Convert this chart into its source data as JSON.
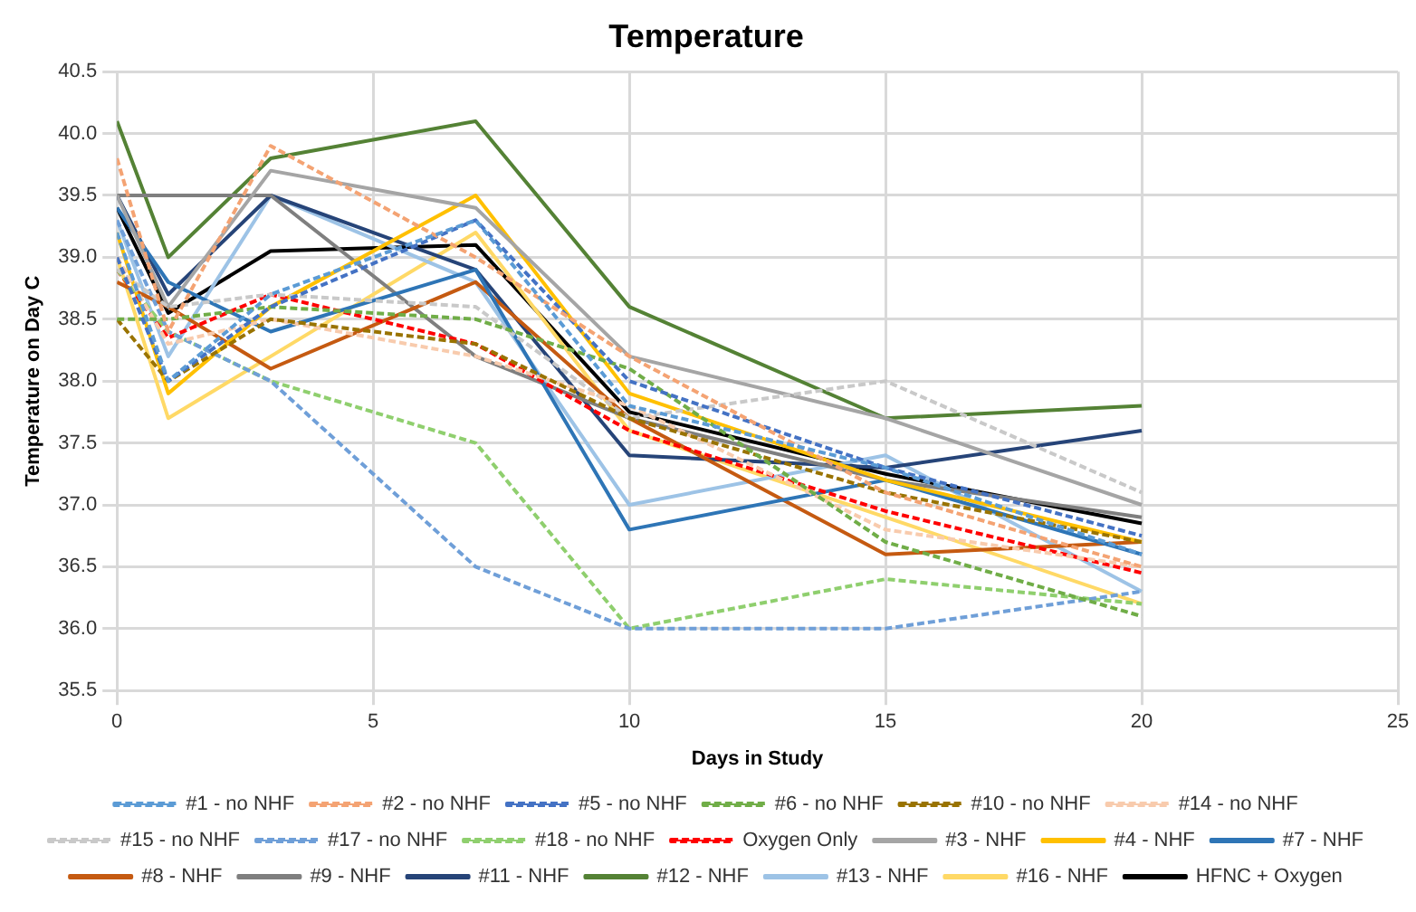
{
  "chart_data": {
    "type": "line",
    "title": "Temperature",
    "xlabel": "Days in Study",
    "ylabel": "Temperature on Day C",
    "x": [
      0,
      1,
      3,
      7,
      10,
      15,
      20
    ],
    "xlim": [
      0,
      25
    ],
    "xticks": [
      0,
      5,
      10,
      15,
      20,
      25
    ],
    "ylim": [
      35.5,
      40.5
    ],
    "yticks": [
      {
        "value": 35.5,
        "label": "35.5"
      },
      {
        "value": 36,
        "label": "36.0"
      },
      {
        "value": 36.5,
        "label": "36.5"
      },
      {
        "value": 37,
        "label": "37.0"
      },
      {
        "value": 37.5,
        "label": "37.5"
      },
      {
        "value": 38,
        "label": "38.0"
      },
      {
        "value": 38.5,
        "label": "38.5"
      },
      {
        "value": 39,
        "label": "39.0"
      },
      {
        "value": 39.5,
        "label": "39.5"
      },
      {
        "value": 40,
        "label": "40.0"
      },
      {
        "value": 40.5,
        "label": "40.5"
      }
    ],
    "grid": true,
    "legend": "bottom",
    "marker": "none",
    "series": [
      {
        "name": "#1 - no NHF",
        "color": "#5b9bd5",
        "line_style": "dashed",
        "values": [
          39.2,
          38.0,
          38.7,
          39.3,
          37.8,
          37.3,
          36.6
        ]
      },
      {
        "name": "#2 - no NHF",
        "color": "#f4a373",
        "line_style": "dashed",
        "values": [
          39.8,
          38.4,
          39.9,
          39.0,
          38.2,
          37.1,
          36.5
        ]
      },
      {
        "name": "#3 - NHF",
        "color": "#a5a5a5",
        "line_style": "solid",
        "values": [
          39.5,
          38.6,
          39.7,
          39.4,
          38.2,
          37.7,
          37.0
        ]
      },
      {
        "name": "#4 - NHF",
        "color": "#ffc000",
        "line_style": "solid",
        "values": [
          39.2,
          37.9,
          38.6,
          39.5,
          37.9,
          37.2,
          36.7
        ]
      },
      {
        "name": "#5 - no NHF",
        "color": "#4472c4",
        "line_style": "dashed",
        "values": [
          39.0,
          38.0,
          38.6,
          39.3,
          38.0,
          37.3,
          36.75
        ]
      },
      {
        "name": "#6 - no NHF",
        "color": "#70ad47",
        "line_style": "dashed",
        "values": [
          38.5,
          38.5,
          38.6,
          38.5,
          38.1,
          36.7,
          36.1
        ]
      },
      {
        "name": "#7 - NHF",
        "color": "#2e75b6",
        "line_style": "solid",
        "values": [
          39.4,
          38.8,
          38.4,
          38.9,
          36.8,
          37.2,
          36.6
        ]
      },
      {
        "name": "#8 - NHF",
        "color": "#c55a11",
        "line_style": "solid",
        "values": [
          38.8,
          38.6,
          38.1,
          38.8,
          37.7,
          36.6,
          36.7
        ]
      },
      {
        "name": "#9 - NHF",
        "color": "#7f7f7f",
        "line_style": "solid",
        "values": [
          39.5,
          39.5,
          39.5,
          38.2,
          37.7,
          37.2,
          36.9
        ]
      },
      {
        "name": "#10 - no NHF",
        "color": "#997300",
        "line_style": "dashed",
        "values": [
          38.5,
          38.0,
          38.5,
          38.3,
          37.7,
          37.1,
          36.7
        ]
      },
      {
        "name": "#11 - NHF",
        "color": "#264478",
        "line_style": "solid",
        "values": [
          39.5,
          38.7,
          39.5,
          38.9,
          37.4,
          37.3,
          37.6
        ]
      },
      {
        "name": "#12 - NHF",
        "color": "#548235",
        "line_style": "solid",
        "values": [
          40.1,
          39.0,
          39.8,
          40.1,
          38.6,
          37.7,
          37.8
        ]
      },
      {
        "name": "#13 - NHF",
        "color": "#9dc3e6",
        "line_style": "solid",
        "values": [
          39.3,
          38.2,
          39.5,
          38.8,
          37.0,
          37.4,
          36.3
        ]
      },
      {
        "name": "#14 - no NHF",
        "color": "#f8cbad",
        "line_style": "dashed",
        "values": [
          39.0,
          38.3,
          38.5,
          38.2,
          37.8,
          36.8,
          36.5
        ]
      },
      {
        "name": "#15 - no NHF",
        "color": "#c9c9c9",
        "line_style": "dashed",
        "values": [
          38.9,
          38.6,
          38.7,
          38.6,
          37.7,
          38.0,
          37.1
        ]
      },
      {
        "name": "#16 - NHF",
        "color": "#ffd966",
        "line_style": "solid",
        "values": [
          39.0,
          37.7,
          38.2,
          39.2,
          37.6,
          36.9,
          36.2
        ]
      },
      {
        "name": "#17 - no NHF",
        "color": "#6f9fd8",
        "line_style": "dashed",
        "values": [
          39.3,
          38.4,
          38.0,
          36.5,
          36.0,
          36.0,
          36.3
        ]
      },
      {
        "name": "#18 - no NHF",
        "color": "#8fcf6e",
        "line_style": "dashed",
        "values": [
          38.9,
          38.4,
          38.0,
          37.5,
          36.0,
          36.4,
          36.2
        ]
      },
      {
        "name": "HFNC + Oxygen",
        "color": "#000000",
        "line_style": "solid",
        "values": [
          39.4,
          38.55,
          39.05,
          39.1,
          37.75,
          37.25,
          36.85
        ]
      },
      {
        "name": "Oxygen Only",
        "color": "#ff0000",
        "line_style": "dashed",
        "values": [
          38.9,
          38.35,
          38.7,
          38.3,
          37.6,
          36.95,
          36.45
        ]
      }
    ]
  }
}
